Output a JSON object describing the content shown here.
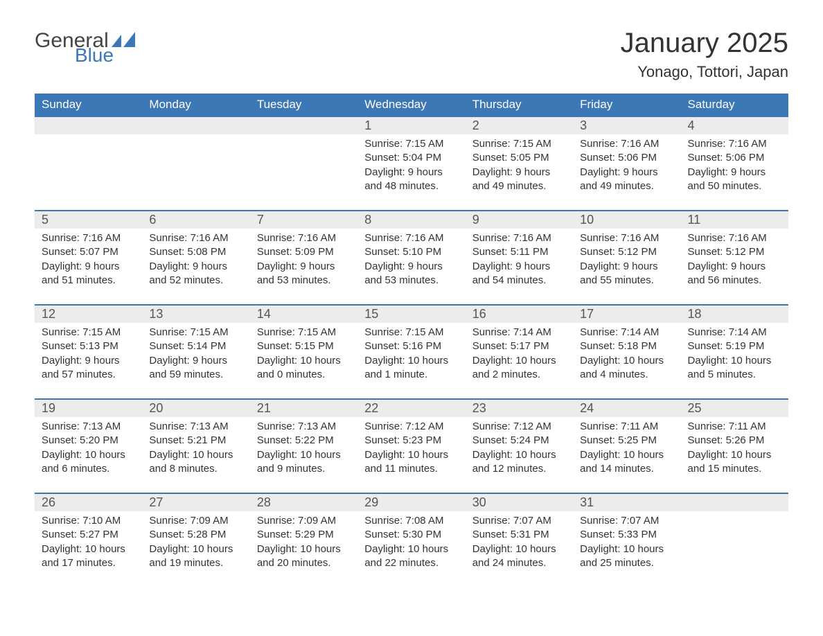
{
  "logo": {
    "text1": "General",
    "text2": "Blue",
    "icon_color": "#3b78b5"
  },
  "title": "January 2025",
  "location": "Yonago, Tottori, Japan",
  "colors": {
    "header_bg": "#3b78b5",
    "header_text": "#ffffff",
    "daynum_bg": "#ececec",
    "border_top": "#3b78b5",
    "body_text": "#333333",
    "page_bg": "#ffffff"
  },
  "fonts": {
    "title_size": 40,
    "location_size": 22,
    "header_size": 17,
    "daynum_size": 18,
    "cell_size": 15
  },
  "weekdays": [
    "Sunday",
    "Monday",
    "Tuesday",
    "Wednesday",
    "Thursday",
    "Friday",
    "Saturday"
  ],
  "labels": {
    "sunrise": "Sunrise:",
    "sunset": "Sunset:",
    "daylight": "Daylight:",
    "and": "and"
  },
  "weeks": [
    [
      null,
      null,
      null,
      {
        "day": "1",
        "sunrise": "7:15 AM",
        "sunset": "5:04 PM",
        "dl_h": "9 hours",
        "dl_m": "48 minutes."
      },
      {
        "day": "2",
        "sunrise": "7:15 AM",
        "sunset": "5:05 PM",
        "dl_h": "9 hours",
        "dl_m": "49 minutes."
      },
      {
        "day": "3",
        "sunrise": "7:16 AM",
        "sunset": "5:06 PM",
        "dl_h": "9 hours",
        "dl_m": "49 minutes."
      },
      {
        "day": "4",
        "sunrise": "7:16 AM",
        "sunset": "5:06 PM",
        "dl_h": "9 hours",
        "dl_m": "50 minutes."
      }
    ],
    [
      {
        "day": "5",
        "sunrise": "7:16 AM",
        "sunset": "5:07 PM",
        "dl_h": "9 hours",
        "dl_m": "51 minutes."
      },
      {
        "day": "6",
        "sunrise": "7:16 AM",
        "sunset": "5:08 PM",
        "dl_h": "9 hours",
        "dl_m": "52 minutes."
      },
      {
        "day": "7",
        "sunrise": "7:16 AM",
        "sunset": "5:09 PM",
        "dl_h": "9 hours",
        "dl_m": "53 minutes."
      },
      {
        "day": "8",
        "sunrise": "7:16 AM",
        "sunset": "5:10 PM",
        "dl_h": "9 hours",
        "dl_m": "53 minutes."
      },
      {
        "day": "9",
        "sunrise": "7:16 AM",
        "sunset": "5:11 PM",
        "dl_h": "9 hours",
        "dl_m": "54 minutes."
      },
      {
        "day": "10",
        "sunrise": "7:16 AM",
        "sunset": "5:12 PM",
        "dl_h": "9 hours",
        "dl_m": "55 minutes."
      },
      {
        "day": "11",
        "sunrise": "7:16 AM",
        "sunset": "5:12 PM",
        "dl_h": "9 hours",
        "dl_m": "56 minutes."
      }
    ],
    [
      {
        "day": "12",
        "sunrise": "7:15 AM",
        "sunset": "5:13 PM",
        "dl_h": "9 hours",
        "dl_m": "57 minutes."
      },
      {
        "day": "13",
        "sunrise": "7:15 AM",
        "sunset": "5:14 PM",
        "dl_h": "9 hours",
        "dl_m": "59 minutes."
      },
      {
        "day": "14",
        "sunrise": "7:15 AM",
        "sunset": "5:15 PM",
        "dl_h": "10 hours",
        "dl_m": "0 minutes."
      },
      {
        "day": "15",
        "sunrise": "7:15 AM",
        "sunset": "5:16 PM",
        "dl_h": "10 hours",
        "dl_m": "1 minute."
      },
      {
        "day": "16",
        "sunrise": "7:14 AM",
        "sunset": "5:17 PM",
        "dl_h": "10 hours",
        "dl_m": "2 minutes."
      },
      {
        "day": "17",
        "sunrise": "7:14 AM",
        "sunset": "5:18 PM",
        "dl_h": "10 hours",
        "dl_m": "4 minutes."
      },
      {
        "day": "18",
        "sunrise": "7:14 AM",
        "sunset": "5:19 PM",
        "dl_h": "10 hours",
        "dl_m": "5 minutes."
      }
    ],
    [
      {
        "day": "19",
        "sunrise": "7:13 AM",
        "sunset": "5:20 PM",
        "dl_h": "10 hours",
        "dl_m": "6 minutes."
      },
      {
        "day": "20",
        "sunrise": "7:13 AM",
        "sunset": "5:21 PM",
        "dl_h": "10 hours",
        "dl_m": "8 minutes."
      },
      {
        "day": "21",
        "sunrise": "7:13 AM",
        "sunset": "5:22 PM",
        "dl_h": "10 hours",
        "dl_m": "9 minutes."
      },
      {
        "day": "22",
        "sunrise": "7:12 AM",
        "sunset": "5:23 PM",
        "dl_h": "10 hours",
        "dl_m": "11 minutes."
      },
      {
        "day": "23",
        "sunrise": "7:12 AM",
        "sunset": "5:24 PM",
        "dl_h": "10 hours",
        "dl_m": "12 minutes."
      },
      {
        "day": "24",
        "sunrise": "7:11 AM",
        "sunset": "5:25 PM",
        "dl_h": "10 hours",
        "dl_m": "14 minutes."
      },
      {
        "day": "25",
        "sunrise": "7:11 AM",
        "sunset": "5:26 PM",
        "dl_h": "10 hours",
        "dl_m": "15 minutes."
      }
    ],
    [
      {
        "day": "26",
        "sunrise": "7:10 AM",
        "sunset": "5:27 PM",
        "dl_h": "10 hours",
        "dl_m": "17 minutes."
      },
      {
        "day": "27",
        "sunrise": "7:09 AM",
        "sunset": "5:28 PM",
        "dl_h": "10 hours",
        "dl_m": "19 minutes."
      },
      {
        "day": "28",
        "sunrise": "7:09 AM",
        "sunset": "5:29 PM",
        "dl_h": "10 hours",
        "dl_m": "20 minutes."
      },
      {
        "day": "29",
        "sunrise": "7:08 AM",
        "sunset": "5:30 PM",
        "dl_h": "10 hours",
        "dl_m": "22 minutes."
      },
      {
        "day": "30",
        "sunrise": "7:07 AM",
        "sunset": "5:31 PM",
        "dl_h": "10 hours",
        "dl_m": "24 minutes."
      },
      {
        "day": "31",
        "sunrise": "7:07 AM",
        "sunset": "5:33 PM",
        "dl_h": "10 hours",
        "dl_m": "25 minutes."
      },
      null
    ]
  ]
}
